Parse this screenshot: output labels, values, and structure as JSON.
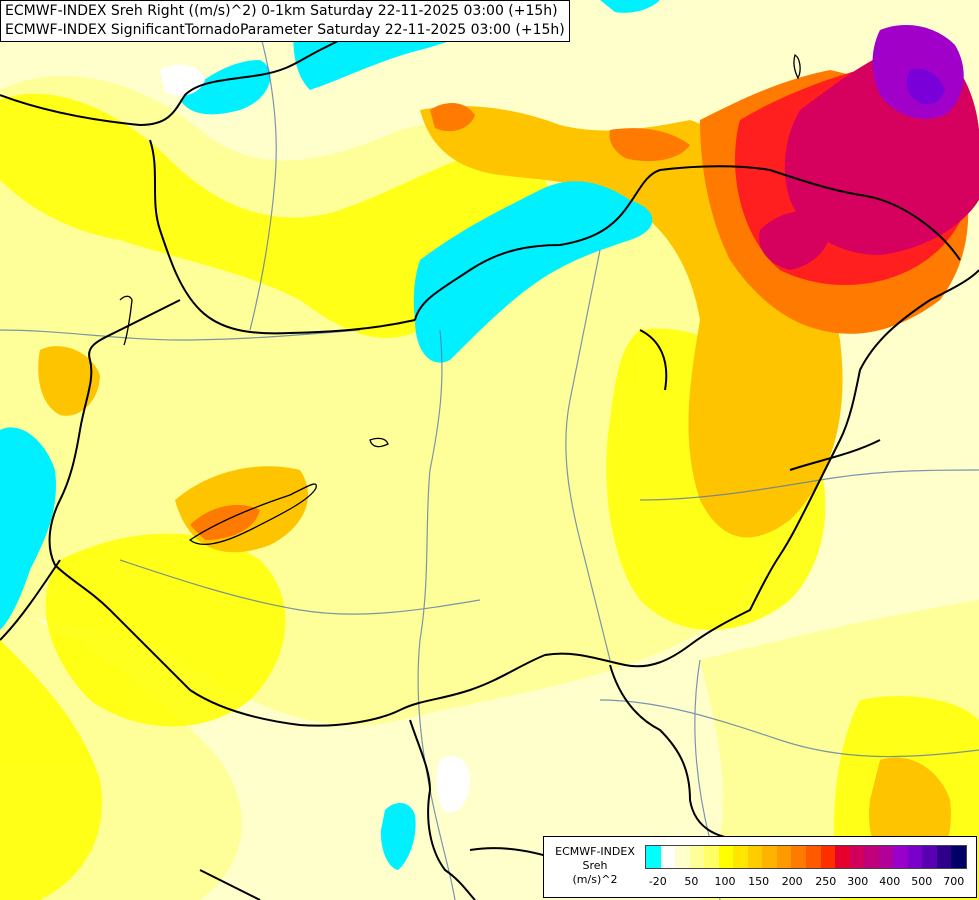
{
  "titles": [
    "ECMWF-INDEX Sreh Right ((m/s)^2) 0-1km Saturday 22-11-2025 03:00 (+15h)",
    "ECMWF-INDEX SignificantTornadoParameter Saturday 22-11-2025 03:00 (+15h)"
  ],
  "legend": {
    "line1": "ECMWF-INDEX",
    "line2": "Sreh",
    "line3": "(m/s)^2",
    "colors": [
      "#00ffff",
      "#ffffff",
      "#ffffcc",
      "#ffff99",
      "#ffff66",
      "#ffff00",
      "#ffe600",
      "#ffcc00",
      "#ffb300",
      "#ff9900",
      "#ff7a00",
      "#ff5a00",
      "#ff2e00",
      "#e6002e",
      "#d1005a",
      "#c0007a",
      "#b00099",
      "#9900cc",
      "#7a00cc",
      "#5a00b3",
      "#2e008a",
      "#000066"
    ],
    "ticks": [
      {
        "label": "-20",
        "at": 0.04
      },
      {
        "label": "50",
        "at": 0.145
      },
      {
        "label": "100",
        "at": 0.25
      },
      {
        "label": "150",
        "at": 0.355
      },
      {
        "label": "200",
        "at": 0.46
      },
      {
        "label": "250",
        "at": 0.565
      },
      {
        "label": "300",
        "at": 0.665
      },
      {
        "label": "400",
        "at": 0.765
      },
      {
        "label": "500",
        "at": 0.865
      },
      {
        "label": "700",
        "at": 0.965
      }
    ]
  },
  "palette": {
    "pale": "#ffffcc",
    "light_yellow": "#ffff99",
    "yellow": "#ffff00",
    "gold": "#ffd700",
    "orange": "#ffa500",
    "dark_orange": "#ff6a00",
    "red": "#ff2020",
    "crimson": "#e6005a",
    "magenta": "#c8008c",
    "purple": "#8a00d4",
    "cyan": "#00f0ff",
    "border": "#000000",
    "river": "#5a7aa8"
  }
}
